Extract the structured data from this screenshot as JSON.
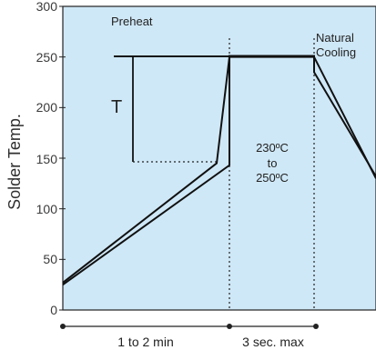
{
  "chart_data": {
    "type": "line",
    "ylabel": "Solder Temp.",
    "ylim": [
      0,
      300
    ],
    "y_ticks": [
      "0",
      "50",
      "100",
      "150",
      "200",
      "250",
      "300"
    ],
    "series": [
      {
        "x": [
          0,
          1,
          1,
          2,
          2,
          3,
          3
        ],
        "y": [
          25,
          143,
          251,
          251,
          250,
          250,
          130
        ]
      },
      {
        "x": [
          0,
          1.1,
          1.1,
          2,
          2,
          3
        ],
        "y": [
          27,
          145,
          250,
          250,
          235,
          235
        ]
      }
    ],
    "annotations": {
      "preheat": "Preheat",
      "natural_line1": "Natural",
      "natural_line2": "Cooling",
      "t_label": "T",
      "range_line1": "230ºC",
      "range_line2": "to",
      "range_line3": "250ºC"
    },
    "bottom_labels": {
      "left": "1 to 2 min",
      "right": "3 sec. max"
    },
    "colors": {
      "plot_background": "#cfe8f7",
      "line": "#111111",
      "axis": "#222222"
    }
  }
}
